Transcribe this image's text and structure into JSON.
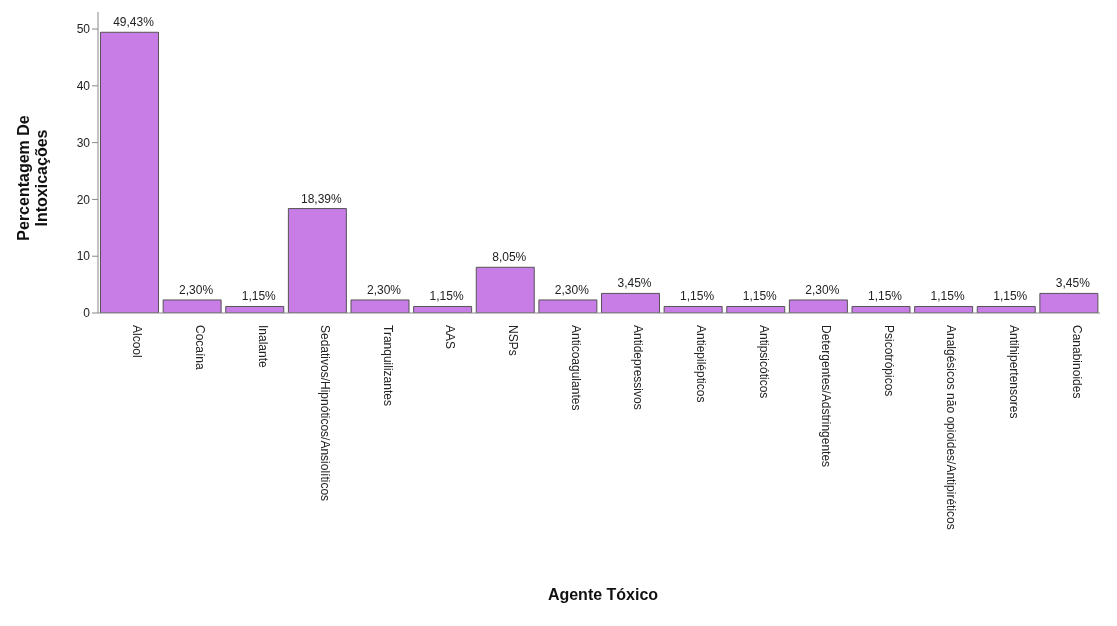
{
  "chart_data": {
    "type": "bar",
    "xlabel": "Agente Tóxico",
    "ylabel": "Percentagem De Intoxicações",
    "categories": [
      "Alcool",
      "Cocaína",
      "Inalante",
      "Sedativos/Hipnóticos/Ansiolíticos",
      "Tranquilizantes",
      "AAS",
      "NSPs",
      "Anticoagulantes",
      "Antidepressivos",
      "Antiepilépticos",
      "Antipsicóticos",
      "Detergentes/Adstringentes",
      "Psicotrópicos",
      "Analgésicos não opioides/Antipiréticos",
      "Antihipertensores",
      "Canabinoides"
    ],
    "values": [
      49.43,
      2.3,
      1.15,
      18.39,
      2.3,
      1.15,
      8.05,
      2.3,
      3.45,
      1.15,
      1.15,
      2.3,
      1.15,
      1.15,
      1.15,
      3.45
    ],
    "value_labels": [
      "49,43%",
      "2,30%",
      "1,15%",
      "18,39%",
      "2,30%",
      "1,15%",
      "8,05%",
      "2,30%",
      "3,45%",
      "1,15%",
      "1,15%",
      "2,30%",
      "1,15%",
      "1,15%",
      "1,15%",
      "3,45%"
    ],
    "color": "#c77ce6",
    "ylim": [
      0,
      53
    ],
    "yticks": [
      0,
      10,
      20,
      30,
      40,
      50
    ],
    "grid": false,
    "legend": false
  }
}
